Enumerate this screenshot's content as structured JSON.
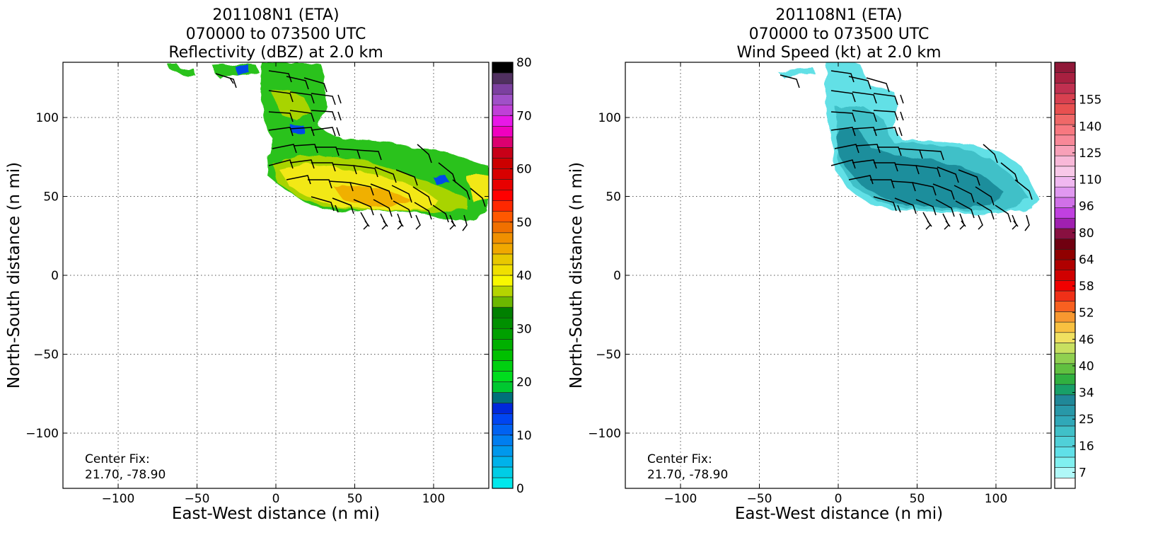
{
  "chart_data": [
    {
      "type": "heatmap",
      "storm": "201108N1 (ETA)",
      "title_lines": [
        "201108N1 (ETA)",
        "070000 to 073500 UTC",
        "Reflectivity (dBZ) at 2.0 km"
      ],
      "xlabel": "East-West distance (n mi)",
      "ylabel": "North-South distance (n mi)",
      "xlim": [
        -135,
        135
      ],
      "ylim": [
        -135,
        135
      ],
      "xticks": [
        -100,
        -50,
        0,
        50,
        100
      ],
      "yticks": [
        -100,
        -50,
        0,
        50,
        100
      ],
      "xtick_labels": [
        "−100",
        "−50",
        "0",
        "50",
        "100"
      ],
      "ytick_labels": [
        "−100",
        "−50",
        "0",
        "50",
        "100"
      ],
      "grid": true,
      "annotation": [
        "Center Fix:",
        "21.70, -78.90"
      ],
      "colorbar": {
        "range": [
          0,
          80
        ],
        "tick_labels": [
          "0",
          "10",
          "20",
          "30",
          "40",
          "50",
          "60",
          "70",
          "80"
        ],
        "colors": [
          "#00e8ec",
          "#00cde6",
          "#00b2ea",
          "#0098ec",
          "#007ef0",
          "#0062f2",
          "#0045f2",
          "#0028da",
          "#00707a",
          "#00c830",
          "#00dc1e",
          "#00d010",
          "#00c000",
          "#00b000",
          "#00a000",
          "#009000",
          "#008000",
          "#6cb800",
          "#b4d400",
          "#f8f800",
          "#f0e000",
          "#e8c800",
          "#f0a800",
          "#f09000",
          "#f07000",
          "#ff5800",
          "#ff2800",
          "#ff0000",
          "#e80000",
          "#d80000",
          "#cc0000",
          "#c80018",
          "#dc0070",
          "#f000c0",
          "#e818e8",
          "#c040d8",
          "#a050c8",
          "#7c40a0",
          "#503060",
          "#000000"
        ]
      },
      "echo_colors": {
        "green": "#2cc21a",
        "yellow_green": "#a8d400",
        "yellow": "#f2e818",
        "orange": "#f0b000",
        "blue": "#0048e8"
      }
    },
    {
      "type": "heatmap",
      "storm": "201108N1 (ETA)",
      "title_lines": [
        "201108N1 (ETA)",
        "070000 to 073500 UTC",
        "Wind Speed (kt) at 2.0 km"
      ],
      "xlabel": "East-West distance (n mi)",
      "ylabel": "North-South distance (n mi)",
      "xlim": [
        -135,
        135
      ],
      "ylim": [
        -135,
        135
      ],
      "xticks": [
        -100,
        -50,
        0,
        50,
        100
      ],
      "yticks": [
        -100,
        -50,
        0,
        50,
        100
      ],
      "xtick_labels": [
        "−100",
        "−50",
        "0",
        "50",
        "100"
      ],
      "ytick_labels": [
        "−100",
        "−50",
        "0",
        "50",
        "100"
      ],
      "grid": true,
      "annotation": [
        "Center Fix:",
        "21.70, -78.90"
      ],
      "colorbar": {
        "tick_labels": [
          "7",
          "16",
          "25",
          "34",
          "40",
          "46",
          "52",
          "58",
          "64",
          "80",
          "96",
          "110",
          "125",
          "140",
          "155"
        ],
        "colors": [
          "#ffffff",
          "#b0f8f8",
          "#80f0f0",
          "#60e0e8",
          "#50d0d8",
          "#40c0c8",
          "#30a8b8",
          "#2898a8",
          "#208898",
          "#18a068",
          "#30b040",
          "#60c040",
          "#90d050",
          "#c8e060",
          "#f0e060",
          "#f8c040",
          "#f89830",
          "#f86020",
          "#f03018",
          "#f00000",
          "#d00000",
          "#b00000",
          "#900000",
          "#700010",
          "#881040",
          "#a020b0",
          "#c040e0",
          "#d070e8",
          "#e098f0",
          "#f0b8f0",
          "#f8c8e8",
          "#f8b8d8",
          "#f8a0b8",
          "#f88898",
          "#f87880",
          "#f06868",
          "#e85050",
          "#d84050",
          "#c03050",
          "#a82040",
          "#901838"
        ]
      },
      "wind_colors": {
        "light": "#62e0e6",
        "medium": "#3fc0c8",
        "dark": "#1f8e9c"
      }
    }
  ]
}
